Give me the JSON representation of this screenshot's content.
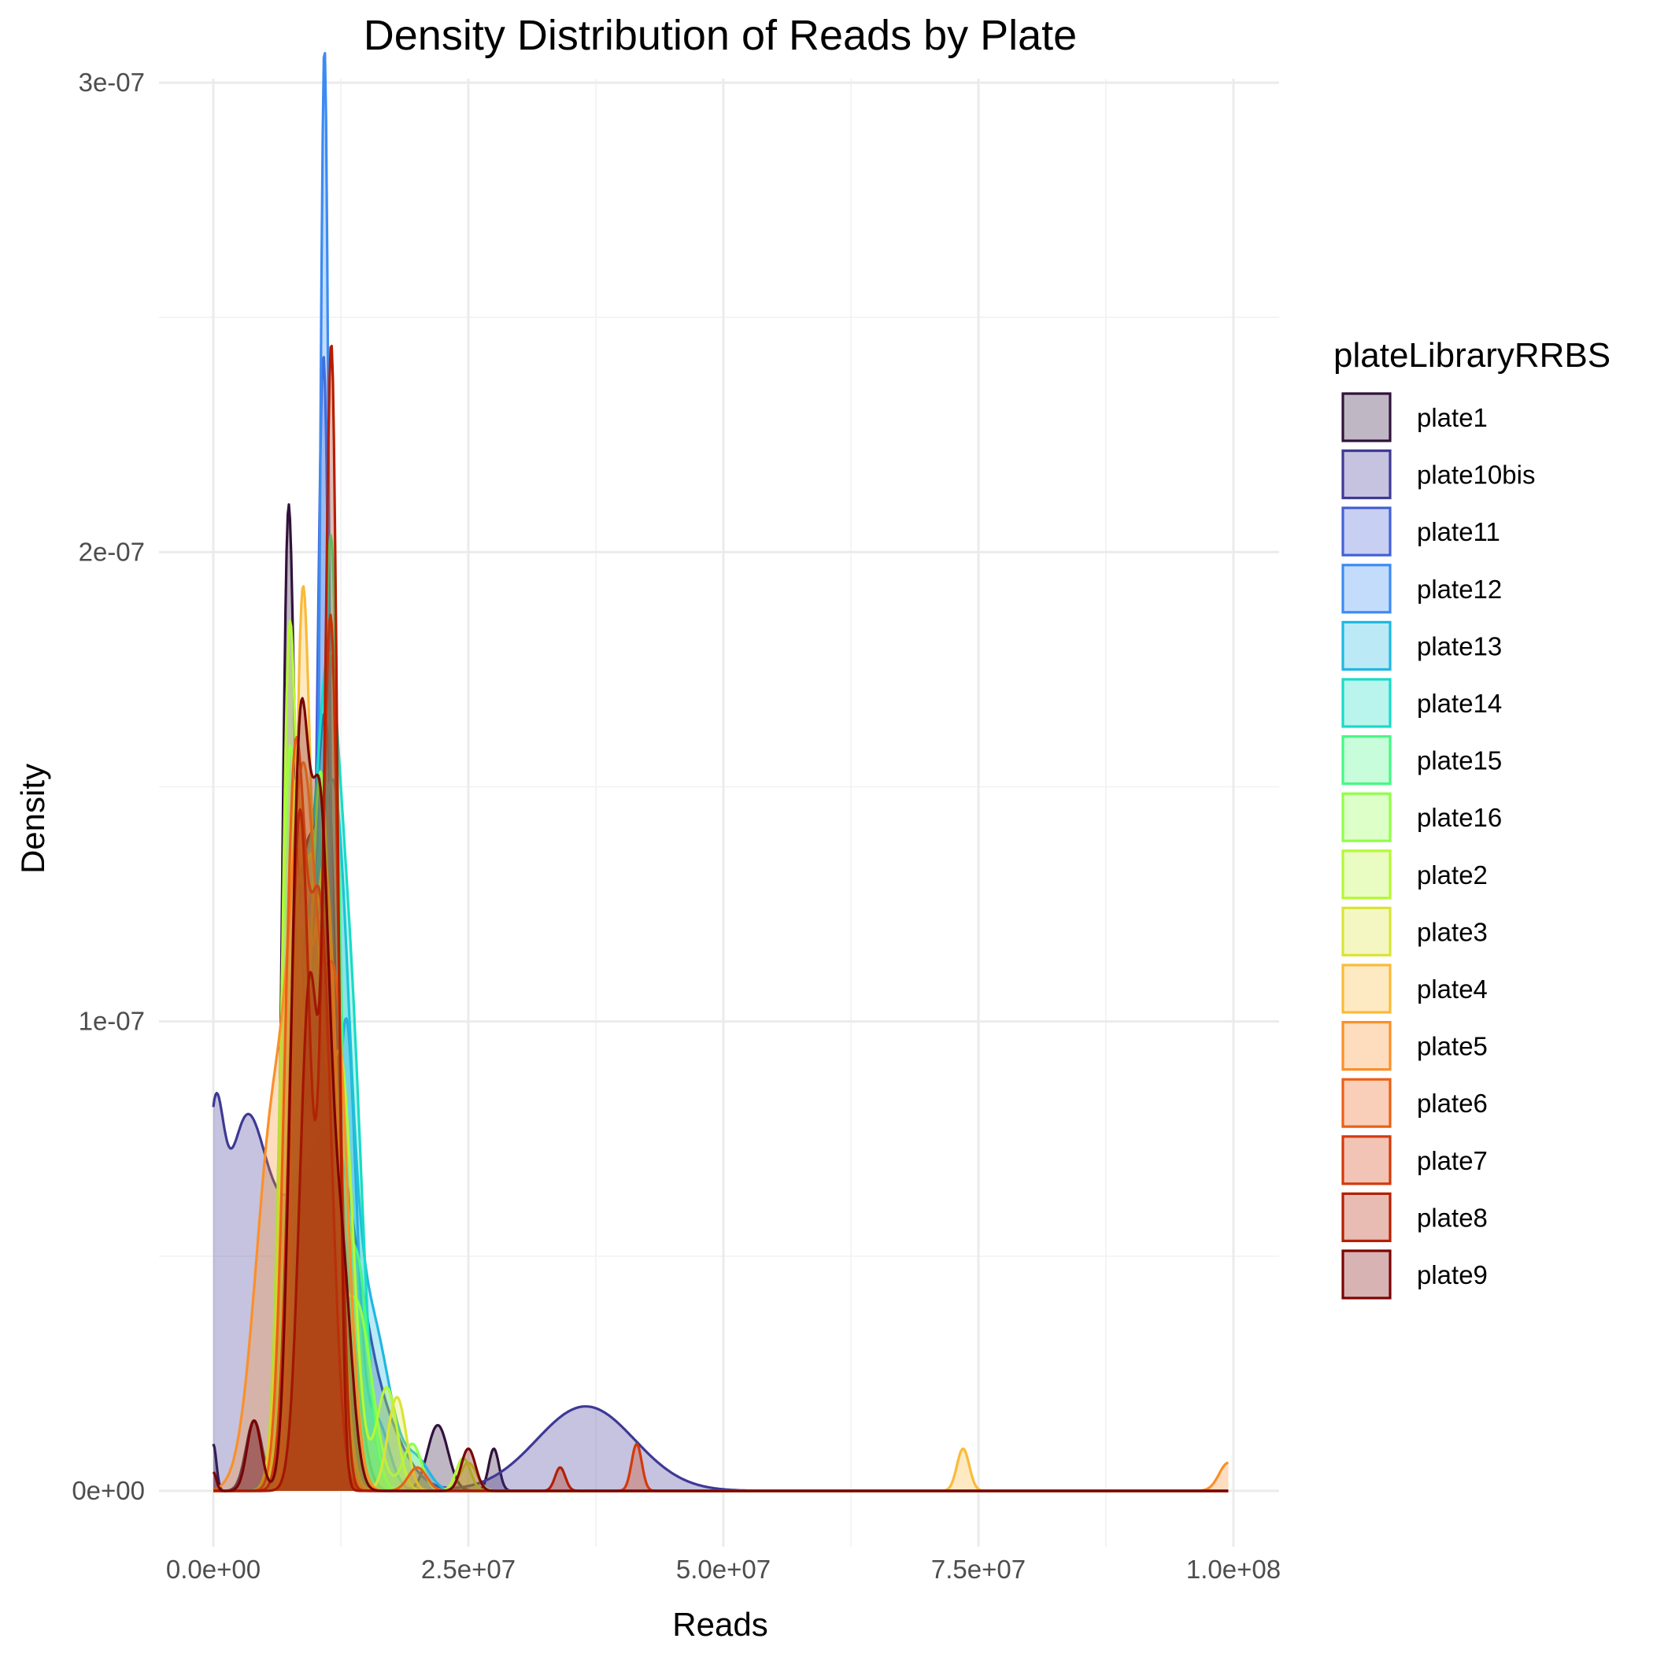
{
  "chart_data": {
    "type": "area",
    "subtype": "density",
    "title": "Density Distribution of Reads by Plate",
    "xlabel": "Reads",
    "ylabel": "Density",
    "xlim": [
      0,
      100000000
    ],
    "ylim": [
      0,
      3e-07
    ],
    "x_ticks": [
      0,
      25000000,
      50000000,
      75000000,
      100000000
    ],
    "x_tick_labels": [
      "0.0e+00",
      "2.5e+07",
      "5.0e+07",
      "7.5e+07",
      "1.0e+08"
    ],
    "y_ticks": [
      0,
      1e-07,
      2e-07,
      3e-07
    ],
    "y_tick_labels": [
      "0e+00",
      "1e-07",
      "2e-07",
      "3e-07"
    ],
    "grid": true,
    "legend": {
      "title": "plateLibraryRRBS",
      "position": "right"
    },
    "series": [
      {
        "name": "plate1",
        "color": "#30123B",
        "peaks": [
          [
            0,
            1e-08,
            300000
          ],
          [
            4000000,
            1.5e-08,
            800000
          ],
          [
            7300000,
            1.88e-07,
            600000
          ],
          [
            9000000,
            1.2e-07,
            900000
          ],
          [
            11000000,
            1.45e-07,
            900000
          ],
          [
            13000000,
            4e-08,
            1200000
          ],
          [
            22000000,
            1.4e-08,
            1000000
          ],
          [
            27500000,
            9e-09,
            500000
          ]
        ]
      },
      {
        "name": "plate10bis",
        "color": "#3E3994",
        "peaks": [
          [
            0,
            5e-08,
            900000
          ],
          [
            3000000,
            7.4e-08,
            2300000
          ],
          [
            8000000,
            4.6e-08,
            2400000
          ],
          [
            12000000,
            6e-08,
            2200000
          ],
          [
            16000000,
            1.5e-08,
            2500000
          ],
          [
            36500000,
            1.8e-08,
            4800000
          ]
        ]
      },
      {
        "name": "plate11",
        "color": "#4560D6",
        "peaks": [
          [
            9000000,
            8e-08,
            1000000
          ],
          [
            10800000,
            2.12e-07,
            600000
          ],
          [
            12500000,
            6e-08,
            1000000
          ]
        ]
      },
      {
        "name": "plate12",
        "color": "#3C8BF3",
        "peaks": [
          [
            10900000,
            2.82e-07,
            450000
          ],
          [
            9000000,
            9e-08,
            1000000
          ],
          [
            13000000,
            1e-07,
            1000000
          ],
          [
            16000000,
            1.5e-08,
            1200000
          ]
        ]
      },
      {
        "name": "plate13",
        "color": "#1FB8E0",
        "peaks": [
          [
            9000000,
            1.05e-07,
            1500000
          ],
          [
            12000000,
            1.3e-07,
            1400000
          ],
          [
            15500000,
            3.5e-08,
            1800000
          ],
          [
            20000000,
            6e-09,
            1200000
          ]
        ]
      },
      {
        "name": "plate14",
        "color": "#18DBC5",
        "peaks": [
          [
            8500000,
            1.15e-07,
            1200000
          ],
          [
            11200000,
            1.55e-07,
            1200000
          ],
          [
            13500000,
            9e-08,
            1200000
          ]
        ]
      },
      {
        "name": "plate15",
        "color": "#46F884",
        "peaks": [
          [
            8500000,
            1.2e-07,
            1100000
          ],
          [
            11500000,
            1.95e-07,
            800000
          ],
          [
            14000000,
            5e-08,
            1200000
          ]
        ]
      },
      {
        "name": "plate16",
        "color": "#8EFF49",
        "peaks": [
          [
            7500000,
            1.55e-07,
            900000
          ],
          [
            10500000,
            1.5e-07,
            1100000
          ],
          [
            14000000,
            4e-08,
            1500000
          ],
          [
            19500000,
            1e-08,
            900000
          ]
        ]
      },
      {
        "name": "plate2",
        "color": "#B5F836",
        "peaks": [
          [
            7400000,
            1.62e-07,
            700000
          ],
          [
            9500000,
            1.3e-07,
            1100000
          ],
          [
            12500000,
            9e-08,
            1200000
          ],
          [
            17000000,
            2.2e-08,
            1000000
          ],
          [
            24500000,
            7e-09,
            700000
          ]
        ]
      },
      {
        "name": "plate3",
        "color": "#D9E436",
        "peaks": [
          [
            8000000,
            1.45e-07,
            1100000
          ],
          [
            11000000,
            1.3e-07,
            1200000
          ],
          [
            18000000,
            2e-08,
            900000
          ],
          [
            25000000,
            6e-09,
            800000
          ]
        ]
      },
      {
        "name": "plate4",
        "color": "#FABA39",
        "peaks": [
          [
            8700000,
            1.78e-07,
            800000
          ],
          [
            11000000,
            1.2e-07,
            1100000
          ],
          [
            73500000,
            9e-09,
            600000
          ]
        ]
      },
      {
        "name": "plate5",
        "color": "#FB8F2A",
        "peaks": [
          [
            6000000,
            8e-08,
            1800000
          ],
          [
            9000000,
            1.3e-07,
            1300000
          ],
          [
            12000000,
            1e-07,
            1200000
          ],
          [
            99500000,
            6e-09,
            900000
          ]
        ]
      },
      {
        "name": "plate6",
        "color": "#EB5F17",
        "peaks": [
          [
            8000000,
            1.5e-07,
            1000000
          ],
          [
            10500000,
            1.2e-07,
            1100000
          ],
          [
            20000000,
            5e-09,
            900000
          ]
        ]
      },
      {
        "name": "plate7",
        "color": "#D33A0A",
        "peaks": [
          [
            8500000,
            1.45e-07,
            1000000
          ],
          [
            11500000,
            1.85e-07,
            800000
          ],
          [
            41500000,
            1e-08,
            500000
          ]
        ]
      },
      {
        "name": "plate8",
        "color": "#B41F02",
        "peaks": [
          [
            11600000,
            2.32e-07,
            600000
          ],
          [
            9500000,
            1.1e-07,
            1000000
          ],
          [
            34000000,
            5e-09,
            500000
          ]
        ]
      },
      {
        "name": "plate9",
        "color": "#7A0403",
        "peaks": [
          [
            0,
            4e-09,
            300000
          ],
          [
            4000000,
            1.5e-08,
            700000
          ],
          [
            8500000,
            1.55e-07,
            900000
          ],
          [
            10500000,
            1.3e-07,
            900000
          ],
          [
            12500000,
            5e-08,
            1000000
          ],
          [
            25000000,
            9e-09,
            700000
          ]
        ]
      }
    ]
  }
}
